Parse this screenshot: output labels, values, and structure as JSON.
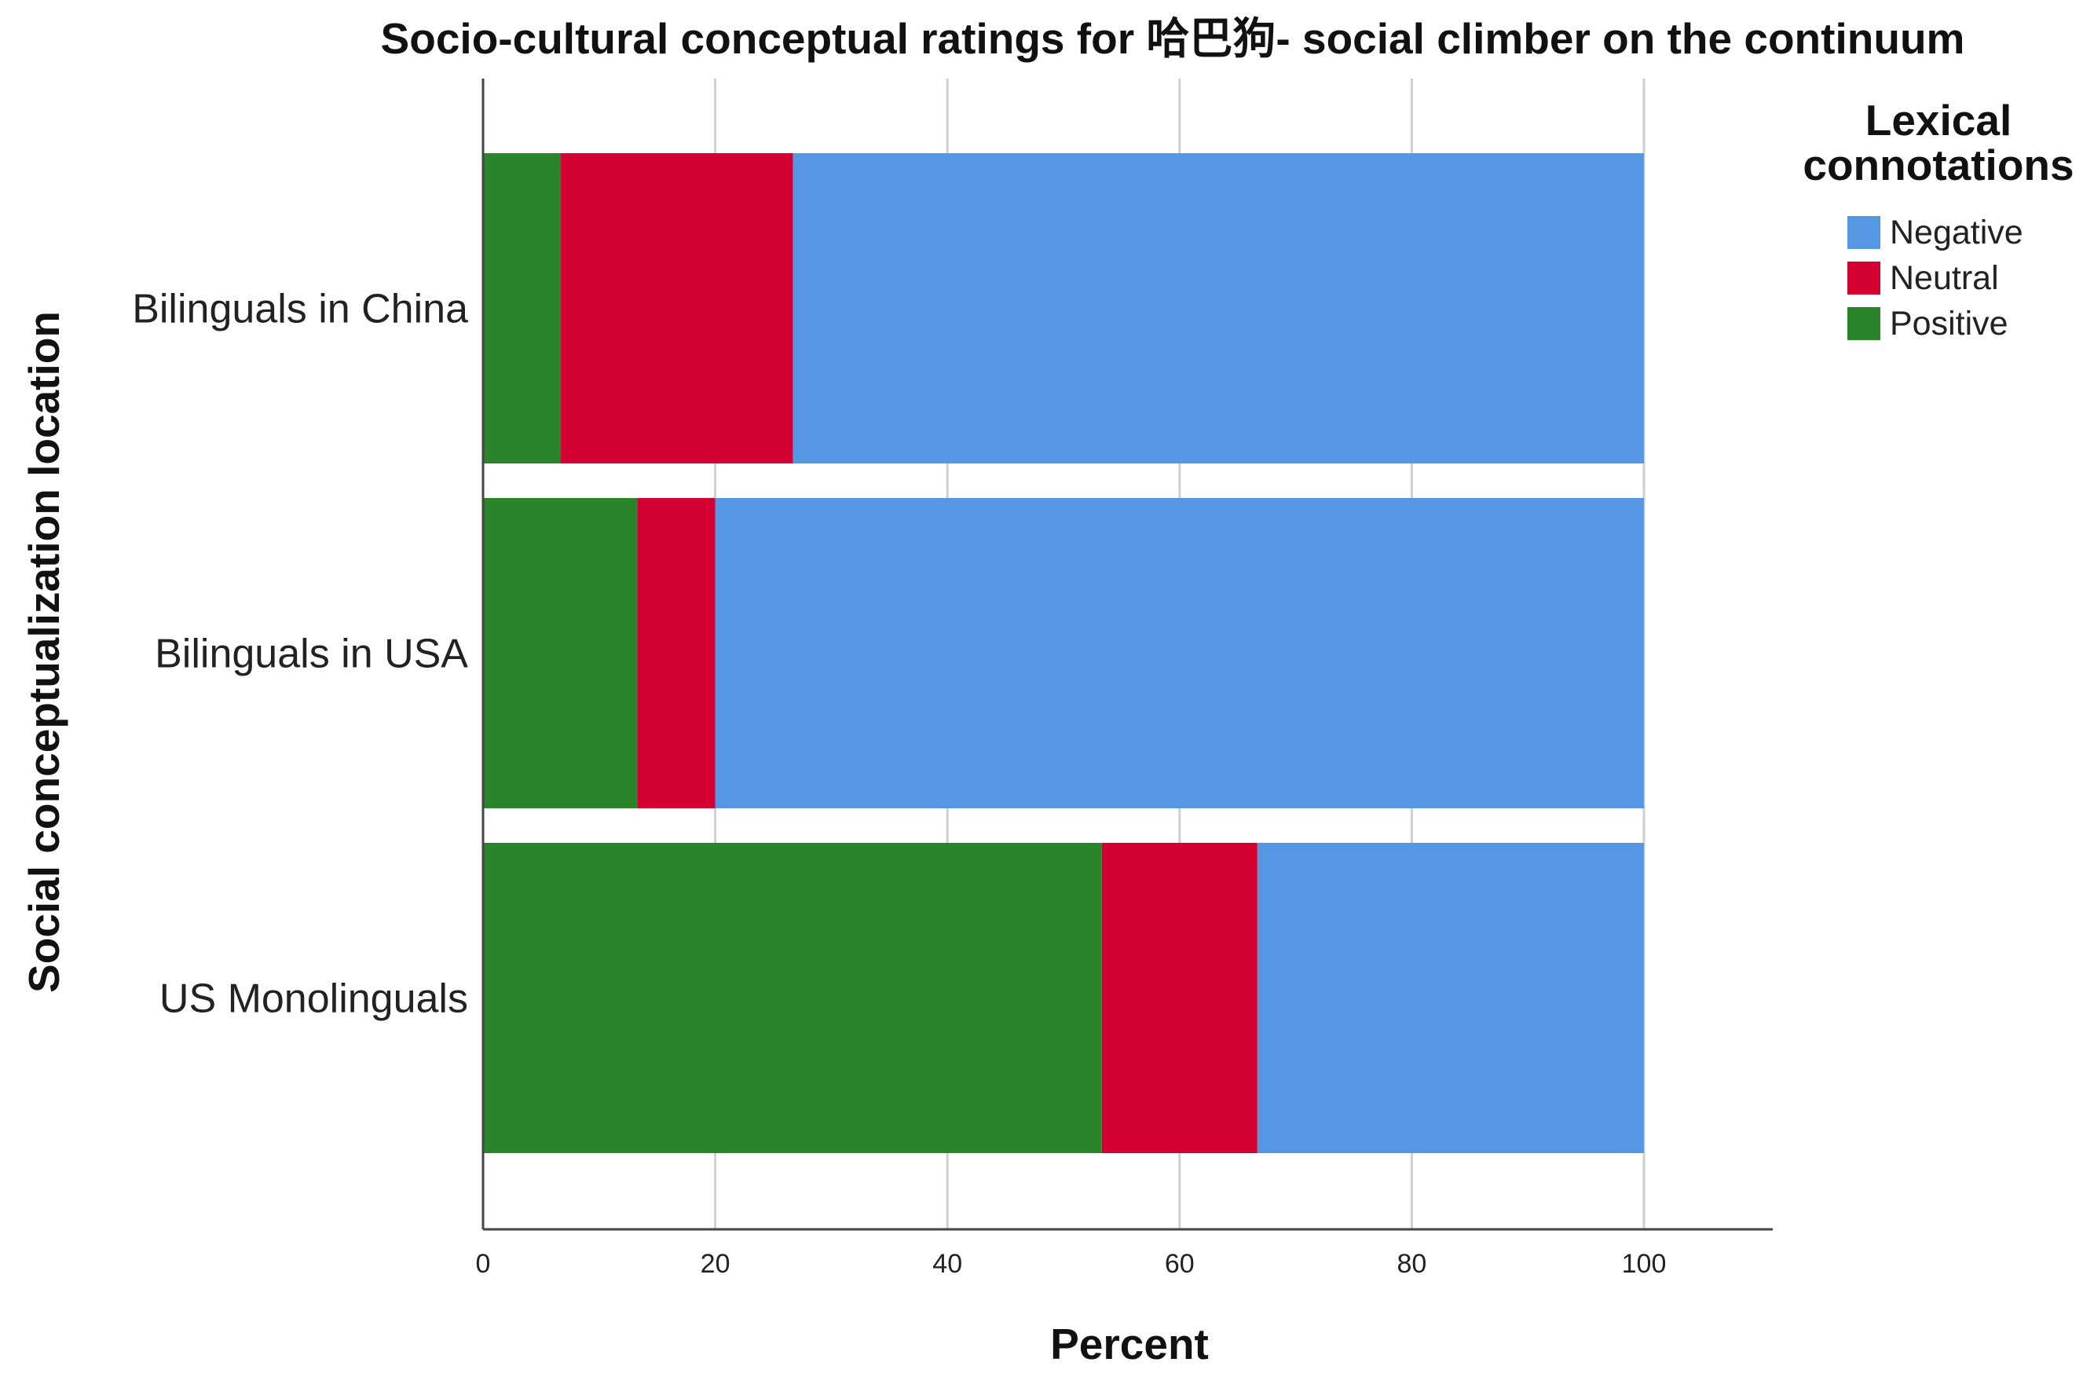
{
  "chart_data": {
    "type": "bar",
    "orientation": "horizontal",
    "stacked": true,
    "title": "Socio-cultural conceptual ratings for 哈巴狗- social climber on the continuum",
    "xlabel": "Percent",
    "ylabel": "Social conceptualization location",
    "xlim": [
      0,
      110
    ],
    "xticks": [
      0,
      20,
      40,
      60,
      80,
      100
    ],
    "grid": true,
    "legend_position": "right",
    "legend_title": "Lexical connotations",
    "categories": [
      "Bilinguals in China",
      "Bilinguals in USA",
      "US Monolinguals"
    ],
    "series": [
      {
        "name": "Positive",
        "color": "#2a8429",
        "values": [
          6.7,
          13.3,
          53.3
        ]
      },
      {
        "name": "Neutral",
        "color": "#d40032",
        "values": [
          20.0,
          6.7,
          13.4
        ]
      },
      {
        "name": "Negative",
        "color": "#5597e3",
        "values": [
          73.3,
          80.0,
          33.3
        ]
      }
    ],
    "legend_order": [
      "Negative",
      "Neutral",
      "Positive"
    ]
  }
}
